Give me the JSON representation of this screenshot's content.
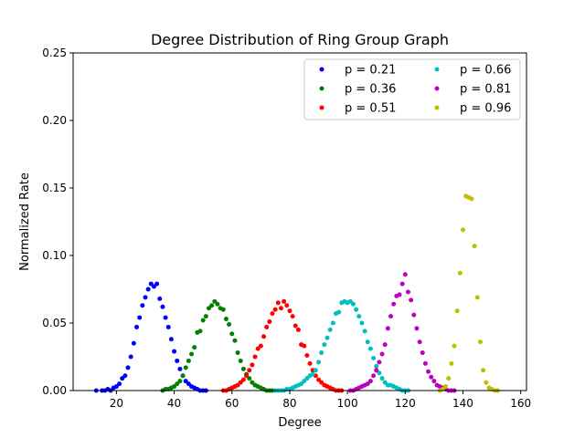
{
  "chart_data": {
    "type": "scatter",
    "title": "Degree Distribution of Ring Group Graph",
    "xlabel": "Degree",
    "ylabel": "Normalized Rate",
    "xlim": [
      5,
      162
    ],
    "ylim": [
      0,
      0.25
    ],
    "xticks": [
      "20",
      "40",
      "60",
      "80",
      "100",
      "120",
      "140",
      "160"
    ],
    "yticks": [
      "0.00",
      "0.05",
      "0.10",
      "0.15",
      "0.20",
      "0.25"
    ],
    "grid": false,
    "legend": {
      "placement": "top-right",
      "columns": 2
    },
    "series": [
      {
        "name": "p = 0.21",
        "color": "#0000ff",
        "points": [
          [
            13,
            0.0
          ],
          [
            15,
            0.0
          ],
          [
            16,
            0.0
          ],
          [
            17,
            0.001
          ],
          [
            18,
            0.0
          ],
          [
            19,
            0.002
          ],
          [
            20,
            0.003
          ],
          [
            21,
            0.005
          ],
          [
            22,
            0.009
          ],
          [
            23,
            0.011
          ],
          [
            24,
            0.017
          ],
          [
            25,
            0.025
          ],
          [
            26,
            0.035
          ],
          [
            27,
            0.047
          ],
          [
            28,
            0.054
          ],
          [
            29,
            0.063
          ],
          [
            30,
            0.069
          ],
          [
            31,
            0.075
          ],
          [
            32,
            0.079
          ],
          [
            33,
            0.077
          ],
          [
            34,
            0.079
          ],
          [
            35,
            0.068
          ],
          [
            36,
            0.062
          ],
          [
            37,
            0.054
          ],
          [
            38,
            0.047
          ],
          [
            39,
            0.038
          ],
          [
            40,
            0.029
          ],
          [
            41,
            0.022
          ],
          [
            42,
            0.016
          ],
          [
            43,
            0.011
          ],
          [
            44,
            0.007
          ],
          [
            45,
            0.005
          ],
          [
            46,
            0.003
          ],
          [
            47,
            0.002
          ],
          [
            48,
            0.001
          ],
          [
            49,
            0.0
          ],
          [
            50,
            0.0
          ],
          [
            51,
            0.0
          ]
        ]
      },
      {
        "name": "p = 0.36",
        "color": "#008000",
        "points": [
          [
            36,
            0.0
          ],
          [
            37,
            0.001
          ],
          [
            38,
            0.001
          ],
          [
            39,
            0.002
          ],
          [
            40,
            0.003
          ],
          [
            41,
            0.005
          ],
          [
            42,
            0.007
          ],
          [
            43,
            0.011
          ],
          [
            44,
            0.017
          ],
          [
            45,
            0.022
          ],
          [
            46,
            0.027
          ],
          [
            47,
            0.032
          ],
          [
            48,
            0.043
          ],
          [
            49,
            0.044
          ],
          [
            50,
            0.052
          ],
          [
            51,
            0.055
          ],
          [
            52,
            0.061
          ],
          [
            53,
            0.063
          ],
          [
            54,
            0.066
          ],
          [
            55,
            0.064
          ],
          [
            56,
            0.061
          ],
          [
            57,
            0.06
          ],
          [
            58,
            0.053
          ],
          [
            59,
            0.049
          ],
          [
            60,
            0.042
          ],
          [
            61,
            0.037
          ],
          [
            62,
            0.028
          ],
          [
            63,
            0.022
          ],
          [
            64,
            0.016
          ],
          [
            65,
            0.012
          ],
          [
            66,
            0.009
          ],
          [
            67,
            0.006
          ],
          [
            68,
            0.004
          ],
          [
            69,
            0.003
          ],
          [
            70,
            0.002
          ],
          [
            71,
            0.001
          ],
          [
            72,
            0.0
          ],
          [
            73,
            0.0
          ],
          [
            74,
            0.0
          ]
        ]
      },
      {
        "name": "p = 0.51",
        "color": "#ff0000",
        "points": [
          [
            57,
            0.0
          ],
          [
            58,
            0.0
          ],
          [
            59,
            0.001
          ],
          [
            60,
            0.002
          ],
          [
            61,
            0.003
          ],
          [
            62,
            0.004
          ],
          [
            63,
            0.006
          ],
          [
            64,
            0.008
          ],
          [
            65,
            0.011
          ],
          [
            66,
            0.015
          ],
          [
            67,
            0.019
          ],
          [
            68,
            0.025
          ],
          [
            69,
            0.031
          ],
          [
            70,
            0.033
          ],
          [
            71,
            0.04
          ],
          [
            72,
            0.047
          ],
          [
            73,
            0.051
          ],
          [
            74,
            0.057
          ],
          [
            75,
            0.06
          ],
          [
            76,
            0.065
          ],
          [
            77,
            0.061
          ],
          [
            78,
            0.066
          ],
          [
            79,
            0.063
          ],
          [
            80,
            0.059
          ],
          [
            81,
            0.055
          ],
          [
            82,
            0.048
          ],
          [
            83,
            0.045
          ],
          [
            84,
            0.034
          ],
          [
            85,
            0.033
          ],
          [
            86,
            0.026
          ],
          [
            87,
            0.02
          ],
          [
            88,
            0.015
          ],
          [
            89,
            0.011
          ],
          [
            90,
            0.008
          ],
          [
            91,
            0.006
          ],
          [
            92,
            0.004
          ],
          [
            93,
            0.003
          ],
          [
            94,
            0.002
          ],
          [
            95,
            0.001
          ],
          [
            96,
            0.0
          ],
          [
            97,
            0.0
          ],
          [
            98,
            0.0
          ]
        ]
      },
      {
        "name": "p = 0.66",
        "color": "#00bfbf",
        "points": [
          [
            75,
            0.0
          ],
          [
            76,
            0.0
          ],
          [
            77,
            0.0
          ],
          [
            78,
            0.0
          ],
          [
            79,
            0.001
          ],
          [
            80,
            0.001
          ],
          [
            81,
            0.002
          ],
          [
            82,
            0.003
          ],
          [
            83,
            0.004
          ],
          [
            84,
            0.005
          ],
          [
            85,
            0.007
          ],
          [
            86,
            0.009
          ],
          [
            87,
            0.011
          ],
          [
            88,
            0.012
          ],
          [
            89,
            0.015
          ],
          [
            90,
            0.021
          ],
          [
            91,
            0.028
          ],
          [
            92,
            0.034
          ],
          [
            93,
            0.039
          ],
          [
            94,
            0.045
          ],
          [
            95,
            0.05
          ],
          [
            96,
            0.057
          ],
          [
            97,
            0.058
          ],
          [
            98,
            0.065
          ],
          [
            99,
            0.066
          ],
          [
            100,
            0.065
          ],
          [
            101,
            0.066
          ],
          [
            102,
            0.064
          ],
          [
            103,
            0.06
          ],
          [
            104,
            0.055
          ],
          [
            105,
            0.05
          ],
          [
            106,
            0.044
          ],
          [
            107,
            0.036
          ],
          [
            108,
            0.031
          ],
          [
            109,
            0.024
          ],
          [
            110,
            0.018
          ],
          [
            111,
            0.013
          ],
          [
            112,
            0.009
          ],
          [
            113,
            0.006
          ],
          [
            114,
            0.004
          ],
          [
            115,
            0.004
          ],
          [
            116,
            0.003
          ],
          [
            117,
            0.002
          ],
          [
            118,
            0.001
          ],
          [
            119,
            0.0
          ],
          [
            120,
            0.0
          ],
          [
            121,
            0.0
          ]
        ]
      },
      {
        "name": "p = 0.81",
        "color": "#bf00bf",
        "points": [
          [
            101,
            0.0
          ],
          [
            102,
            0.0
          ],
          [
            103,
            0.001
          ],
          [
            104,
            0.002
          ],
          [
            105,
            0.003
          ],
          [
            106,
            0.004
          ],
          [
            107,
            0.005
          ],
          [
            108,
            0.007
          ],
          [
            109,
            0.011
          ],
          [
            110,
            0.015
          ],
          [
            111,
            0.021
          ],
          [
            112,
            0.027
          ],
          [
            113,
            0.034
          ],
          [
            114,
            0.046
          ],
          [
            115,
            0.055
          ],
          [
            116,
            0.064
          ],
          [
            117,
            0.07
          ],
          [
            118,
            0.071
          ],
          [
            119,
            0.079
          ],
          [
            120,
            0.086
          ],
          [
            121,
            0.073
          ],
          [
            122,
            0.067
          ],
          [
            123,
            0.056
          ],
          [
            124,
            0.046
          ],
          [
            125,
            0.036
          ],
          [
            126,
            0.028
          ],
          [
            127,
            0.02
          ],
          [
            128,
            0.014
          ],
          [
            129,
            0.01
          ],
          [
            130,
            0.007
          ],
          [
            131,
            0.004
          ],
          [
            132,
            0.003
          ],
          [
            133,
            0.002
          ],
          [
            134,
            0.001
          ],
          [
            135,
            0.0
          ],
          [
            136,
            0.0
          ],
          [
            137,
            0.0
          ]
        ]
      },
      {
        "name": "p = 0.96",
        "color": "#bfbf00",
        "points": [
          [
            132,
            0.0
          ],
          [
            133,
            0.001
          ],
          [
            134,
            0.003
          ],
          [
            135,
            0.009
          ],
          [
            136,
            0.02
          ],
          [
            137,
            0.033
          ],
          [
            138,
            0.059
          ],
          [
            139,
            0.087
          ],
          [
            140,
            0.119
          ],
          [
            141,
            0.144
          ],
          [
            142,
            0.143
          ],
          [
            143,
            0.142
          ],
          [
            144,
            0.107
          ],
          [
            145,
            0.069
          ],
          [
            146,
            0.036
          ],
          [
            147,
            0.015
          ],
          [
            148,
            0.006
          ],
          [
            149,
            0.002
          ],
          [
            150,
            0.001
          ],
          [
            151,
            0.0
          ],
          [
            152,
            0.0
          ]
        ]
      }
    ]
  }
}
